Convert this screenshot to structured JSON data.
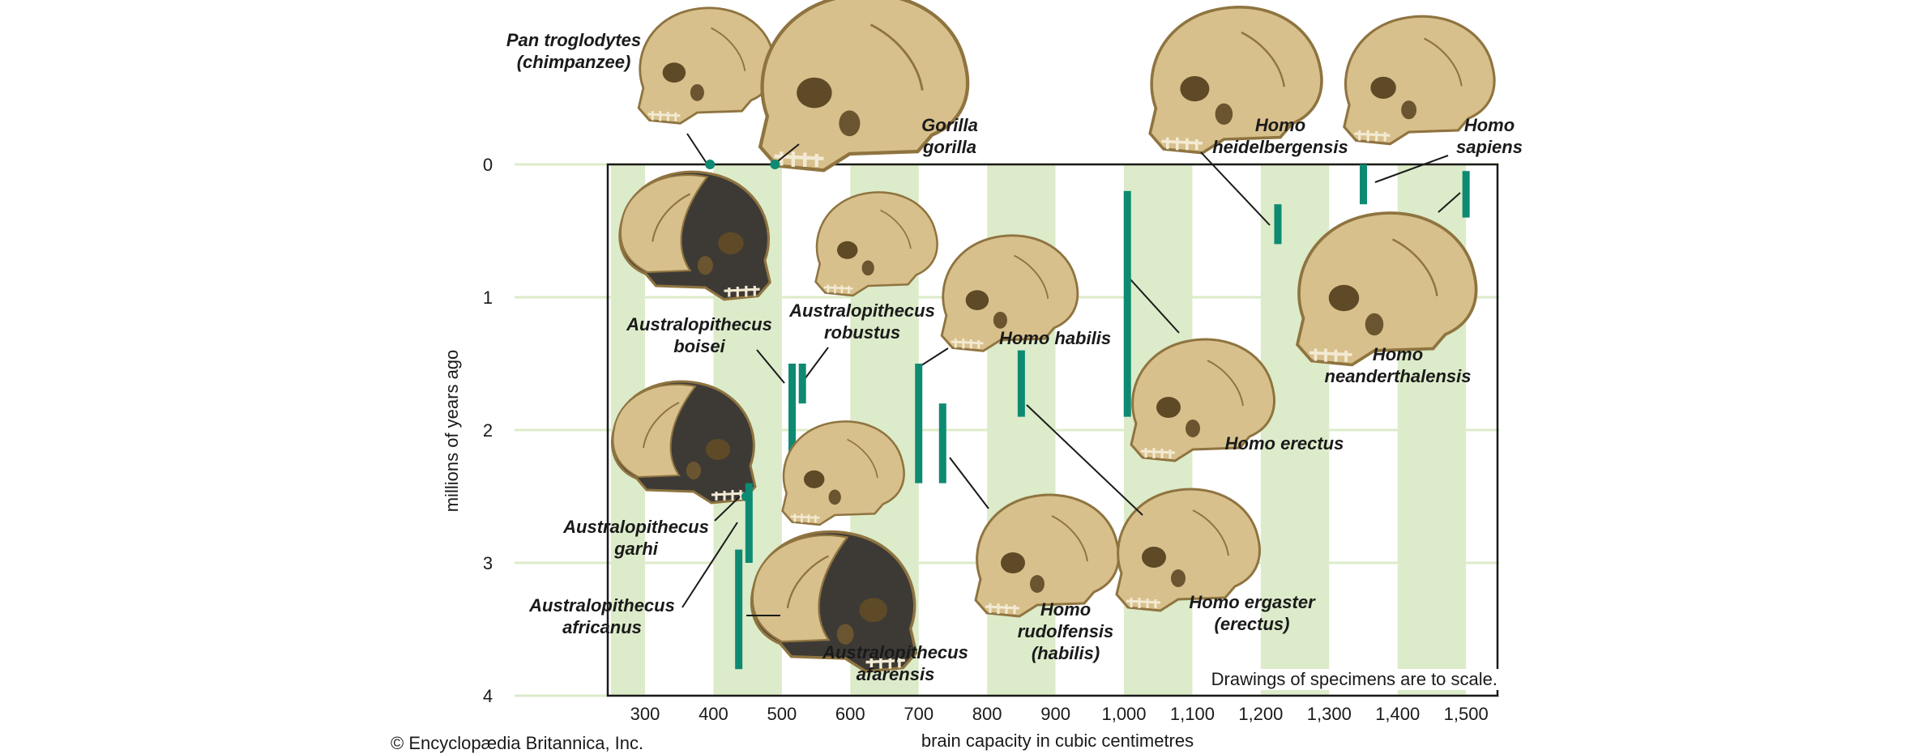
{
  "copyright": "© Encyclopædia Britannica, Inc.",
  "scale_note": "Drawings of specimens are to scale.",
  "colors": {
    "band": "#dcebc9",
    "bar": "#0e8a72",
    "frame": "#1a1a1a",
    "skull_bone": "#d8c08c",
    "skull_dark": "#3d3a36",
    "skull_shadow": "#8f7440"
  },
  "chart_data": {
    "type": "range",
    "xlabel": "brain capacity in cubic centimetres",
    "ylabel": "millions of years ago",
    "xlim": [
      250,
      1550
    ],
    "ylim": [
      0,
      4
    ],
    "y_inverted": true,
    "x_ticks": [
      "300",
      "400",
      "500",
      "600",
      "700",
      "800",
      "900",
      "1,000",
      "1,100",
      "1,200",
      "1,300",
      "1,400",
      "1,500"
    ],
    "x_tick_values": [
      300,
      400,
      500,
      600,
      700,
      800,
      900,
      1000,
      1100,
      1200,
      1300,
      1400,
      1500
    ],
    "y_ticks": [
      "0",
      "1",
      "2",
      "3",
      "4"
    ],
    "y_tick_values": [
      0,
      1,
      2,
      3,
      4
    ],
    "bands": [
      [
        250,
        300
      ],
      [
        400,
        500
      ],
      [
        600,
        700
      ],
      [
        800,
        900
      ],
      [
        1000,
        1100
      ],
      [
        1200,
        1300
      ],
      [
        1400,
        1500
      ]
    ],
    "species": [
      {
        "name": "Pan troglodytes (chimpanzee)",
        "label_lines": [
          "Pan troglodytes",
          "(chimpanzee)"
        ],
        "x": 395,
        "marker": "point",
        "y": 0
      },
      {
        "name": "Gorilla gorilla",
        "label_lines": [
          "Gorilla",
          "gorilla"
        ],
        "x": 490,
        "marker": "point",
        "y": 0
      },
      {
        "name": "Australopithecus boisei",
        "label_lines": [
          "Australopithecus",
          "boisei"
        ],
        "x": 515,
        "y_start": 1.5,
        "y_end": 2.5
      },
      {
        "name": "Australopithecus robustus",
        "label_lines": [
          "Australopithecus",
          "robustus"
        ],
        "x": 530,
        "y_start": 1.5,
        "y_end": 1.8
      },
      {
        "name": "Australopithecus garhi",
        "label_lines": [
          "Australopithecus",
          "garhi"
        ],
        "x": 448,
        "marker": "point",
        "y": 2.5
      },
      {
        "name": "Australopithecus africanus",
        "label_lines": [
          "Australopithecus",
          "africanus"
        ],
        "x": 452,
        "y_start": 2.4,
        "y_end": 3.0
      },
      {
        "name": "Australopithecus afarensis",
        "label_lines": [
          "Australopithecus",
          "afarensis"
        ],
        "x": 437,
        "y_start": 2.9,
        "y_end": 3.8
      },
      {
        "name": "Homo habilis",
        "label_lines": [
          "Homo habilis"
        ],
        "x": 700,
        "y_start": 1.5,
        "y_end": 2.4
      },
      {
        "name": "Homo rudolfensis (habilis)",
        "label_lines": [
          "Homo",
          "rudolfensis",
          "(habilis)"
        ],
        "x": 735,
        "y_start": 1.8,
        "y_end": 2.4
      },
      {
        "name": "Homo ergaster (erectus)",
        "label_lines": [
          "Homo ergaster",
          "(erectus)"
        ],
        "x": 850,
        "y_start": 1.4,
        "y_end": 1.9
      },
      {
        "name": "Homo erectus",
        "label_lines": [
          "Homo erectus"
        ],
        "x": 1005,
        "y_start": 0.2,
        "y_end": 1.9
      },
      {
        "name": "Homo heidelbergensis",
        "label_lines": [
          "Homo",
          "heidelbergensis"
        ],
        "x": 1225,
        "y_start": 0.3,
        "y_end": 0.6
      },
      {
        "name": "Homo sapiens",
        "label_lines": [
          "Homo",
          "sapiens"
        ],
        "x": 1350,
        "y_start": 0,
        "y_end": 0.3
      },
      {
        "name": "Homo neanderthalensis",
        "label_lines": [
          "Homo",
          "neanderthalensis"
        ],
        "x": 1500,
        "y_start": 0.05,
        "y_end": 0.4
      }
    ]
  }
}
